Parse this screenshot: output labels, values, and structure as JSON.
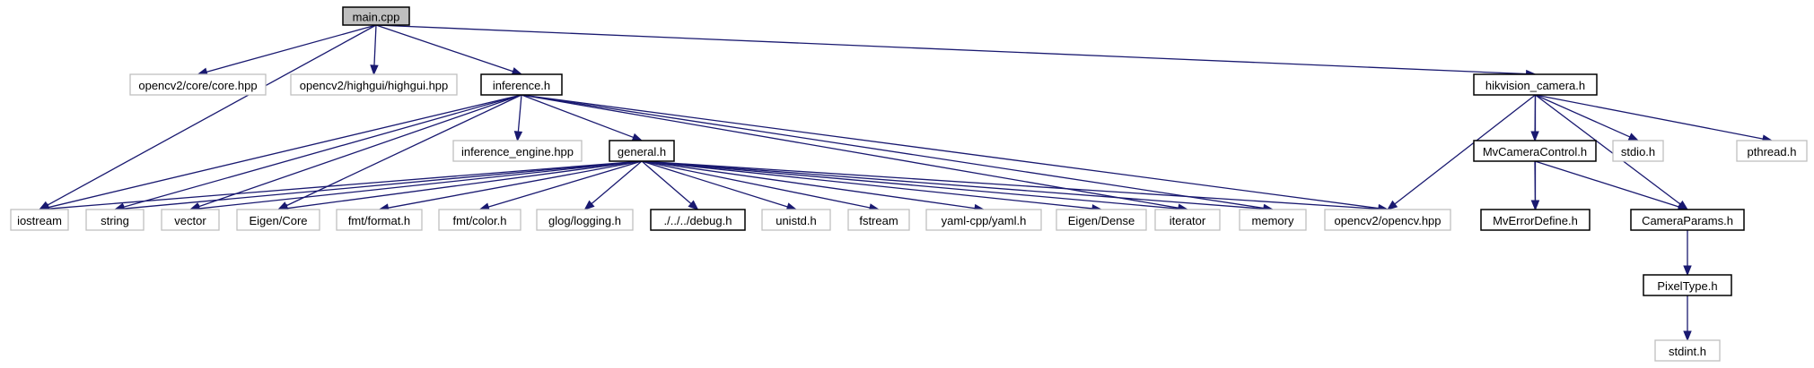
{
  "graph": {
    "colors": {
      "edge": "#191970",
      "documented_border": "#000000",
      "external_border": "#bfbfbf",
      "root_fill": "#bfbfbf"
    },
    "nodes": [
      {
        "id": "main",
        "label": "main.cpp",
        "kind": "root"
      },
      {
        "id": "iostream",
        "label": "iostream",
        "kind": "external"
      },
      {
        "id": "core_hpp",
        "label": "opencv2/core/core.hpp",
        "kind": "external"
      },
      {
        "id": "highgui",
        "label": "opencv2/highgui/highgui.hpp",
        "kind": "external"
      },
      {
        "id": "inference_h",
        "label": "inference.h",
        "kind": "documented"
      },
      {
        "id": "hikvision",
        "label": "hikvision_camera.h",
        "kind": "documented"
      },
      {
        "id": "string",
        "label": "string",
        "kind": "external"
      },
      {
        "id": "vector",
        "label": "vector",
        "kind": "external"
      },
      {
        "id": "eigen_core",
        "label": "Eigen/Core",
        "kind": "external"
      },
      {
        "id": "inference_engine",
        "label": "inference_engine.hpp",
        "kind": "external"
      },
      {
        "id": "general",
        "label": "general.h",
        "kind": "documented"
      },
      {
        "id": "iterator",
        "label": "iterator",
        "kind": "external"
      },
      {
        "id": "memory",
        "label": "memory",
        "kind": "external"
      },
      {
        "id": "opencv_hpp",
        "label": "opencv2/opencv.hpp",
        "kind": "external"
      },
      {
        "id": "fmt_format",
        "label": "fmt/format.h",
        "kind": "external"
      },
      {
        "id": "fmt_color",
        "label": "fmt/color.h",
        "kind": "external"
      },
      {
        "id": "glog",
        "label": "glog/logging.h",
        "kind": "external"
      },
      {
        "id": "debug",
        "label": "./../../debug.h",
        "kind": "documented"
      },
      {
        "id": "unistd",
        "label": "unistd.h",
        "kind": "external"
      },
      {
        "id": "fstream",
        "label": "fstream",
        "kind": "external"
      },
      {
        "id": "yaml",
        "label": "yaml-cpp/yaml.h",
        "kind": "external"
      },
      {
        "id": "eigen_dense",
        "label": "Eigen/Dense",
        "kind": "external"
      },
      {
        "id": "mvcc",
        "label": "MvCameraControl.h",
        "kind": "documented"
      },
      {
        "id": "stdio",
        "label": "stdio.h",
        "kind": "external"
      },
      {
        "id": "pthread",
        "label": "pthread.h",
        "kind": "external"
      },
      {
        "id": "mverr",
        "label": "MvErrorDefine.h",
        "kind": "documented"
      },
      {
        "id": "camparams",
        "label": "CameraParams.h",
        "kind": "documented"
      },
      {
        "id": "pixeltype",
        "label": "PixelType.h",
        "kind": "documented"
      },
      {
        "id": "stdint",
        "label": "stdint.h",
        "kind": "external"
      }
    ],
    "edges": [
      {
        "from": "main",
        "to": "iostream"
      },
      {
        "from": "main",
        "to": "core_hpp"
      },
      {
        "from": "main",
        "to": "highgui"
      },
      {
        "from": "main",
        "to": "inference_h"
      },
      {
        "from": "main",
        "to": "hikvision"
      },
      {
        "from": "inference_h",
        "to": "iostream"
      },
      {
        "from": "inference_h",
        "to": "string"
      },
      {
        "from": "inference_h",
        "to": "vector"
      },
      {
        "from": "inference_h",
        "to": "eigen_core"
      },
      {
        "from": "inference_h",
        "to": "inference_engine"
      },
      {
        "from": "inference_h",
        "to": "general"
      },
      {
        "from": "inference_h",
        "to": "iterator"
      },
      {
        "from": "inference_h",
        "to": "memory"
      },
      {
        "from": "inference_h",
        "to": "opencv_hpp"
      },
      {
        "from": "general",
        "to": "iostream"
      },
      {
        "from": "general",
        "to": "string"
      },
      {
        "from": "general",
        "to": "vector"
      },
      {
        "from": "general",
        "to": "eigen_core"
      },
      {
        "from": "general",
        "to": "fmt_format"
      },
      {
        "from": "general",
        "to": "fmt_color"
      },
      {
        "from": "general",
        "to": "glog"
      },
      {
        "from": "general",
        "to": "debug"
      },
      {
        "from": "general",
        "to": "unistd"
      },
      {
        "from": "general",
        "to": "fstream"
      },
      {
        "from": "general",
        "to": "yaml"
      },
      {
        "from": "general",
        "to": "eigen_dense"
      },
      {
        "from": "general",
        "to": "iterator"
      },
      {
        "from": "general",
        "to": "memory"
      },
      {
        "from": "general",
        "to": "opencv_hpp"
      },
      {
        "from": "hikvision",
        "to": "opencv_hpp"
      },
      {
        "from": "hikvision",
        "to": "mvcc"
      },
      {
        "from": "hikvision",
        "to": "mverr"
      },
      {
        "from": "hikvision",
        "to": "stdio"
      },
      {
        "from": "hikvision",
        "to": "camparams"
      },
      {
        "from": "hikvision",
        "to": "pthread"
      },
      {
        "from": "mvcc",
        "to": "mverr"
      },
      {
        "from": "mvcc",
        "to": "camparams"
      },
      {
        "from": "camparams",
        "to": "pixeltype"
      },
      {
        "from": "pixeltype",
        "to": "stdint"
      }
    ]
  }
}
